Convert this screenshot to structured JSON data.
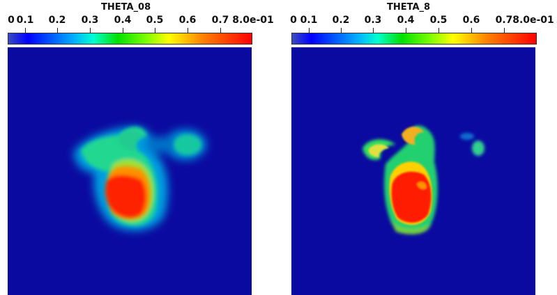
{
  "panels": [
    {
      "title": "THETA_08",
      "ticks": [
        "0",
        "0.1",
        "0.2",
        "0.3",
        "0.4",
        "0.5",
        "0.6",
        "0.7",
        "8.0e-01"
      ]
    },
    {
      "title": "THETA_8",
      "ticks": [
        "0",
        "0.1",
        "0.2",
        "0.3",
        "0.4",
        "0.5",
        "0.6",
        "0.7",
        "8.0e-01"
      ]
    }
  ]
}
